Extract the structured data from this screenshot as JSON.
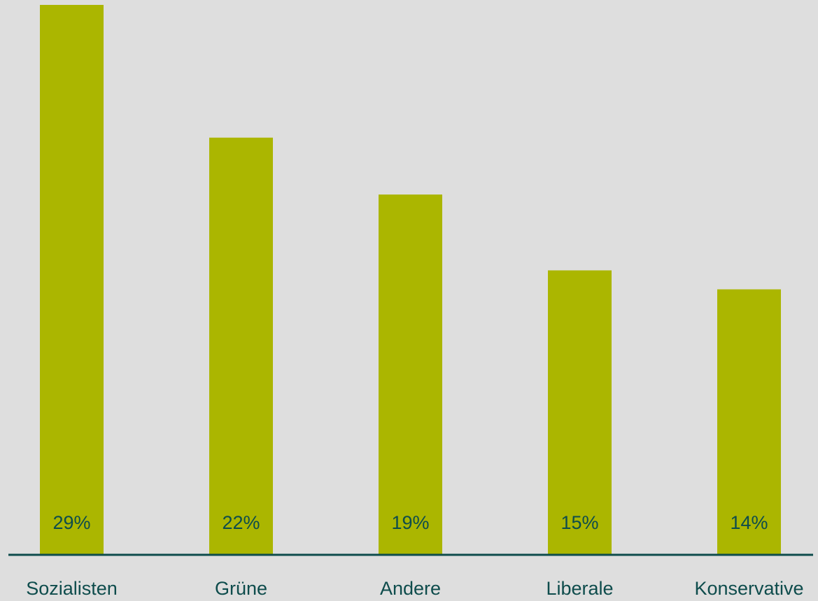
{
  "chart_data": {
    "type": "bar",
    "categories": [
      "Sozialisten",
      "Grüne",
      "Andere",
      "Liberale",
      "Konservative"
    ],
    "values": [
      29,
      22,
      19,
      15,
      14
    ],
    "value_labels": [
      "29%",
      "22%",
      "19%",
      "15%",
      "14%"
    ],
    "title": "",
    "xlabel": "",
    "ylabel": "",
    "ylim": [
      0,
      29
    ],
    "grid": false,
    "legend": "none"
  },
  "colors": {
    "background": "#dedede",
    "bar": "#abb600",
    "axis": "#0e4c4c",
    "text": "#0e4c4c"
  }
}
